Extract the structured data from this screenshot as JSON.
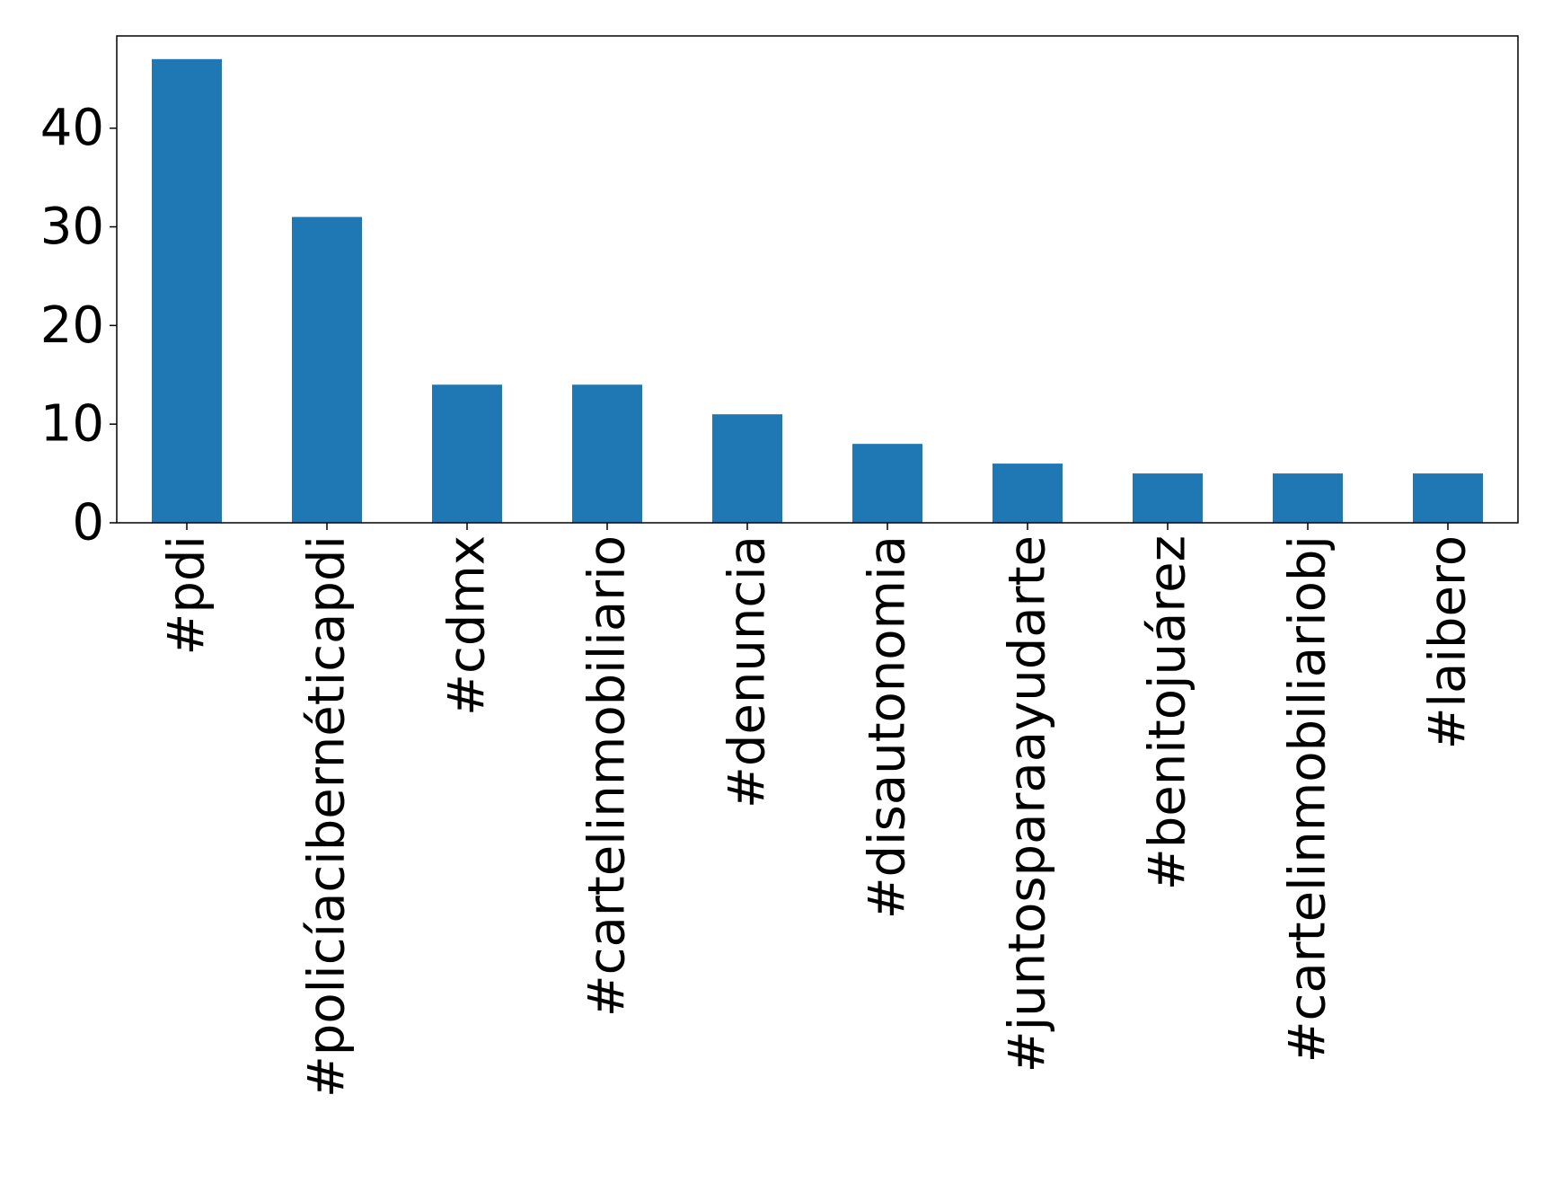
{
  "chart_data": {
    "type": "bar",
    "title": "",
    "xlabel": "",
    "ylabel": "",
    "categories": [
      "#pdi",
      "#policíacibernéticapdi",
      "#cdmx",
      "#cartelinmobiliario",
      "#denuncia",
      "#disautonomia",
      "#juntosparaayudarte",
      "#benitojuárez",
      "#cartelinmobiliariobj",
      "#laibero"
    ],
    "values": [
      47,
      31,
      14,
      14,
      11,
      8,
      6,
      5,
      5,
      5
    ],
    "ylim": [
      0,
      49.35
    ],
    "yticks": [
      0,
      10,
      20,
      30,
      40
    ],
    "bar_color": "#1f77b4",
    "grid": false,
    "legend": "none"
  }
}
